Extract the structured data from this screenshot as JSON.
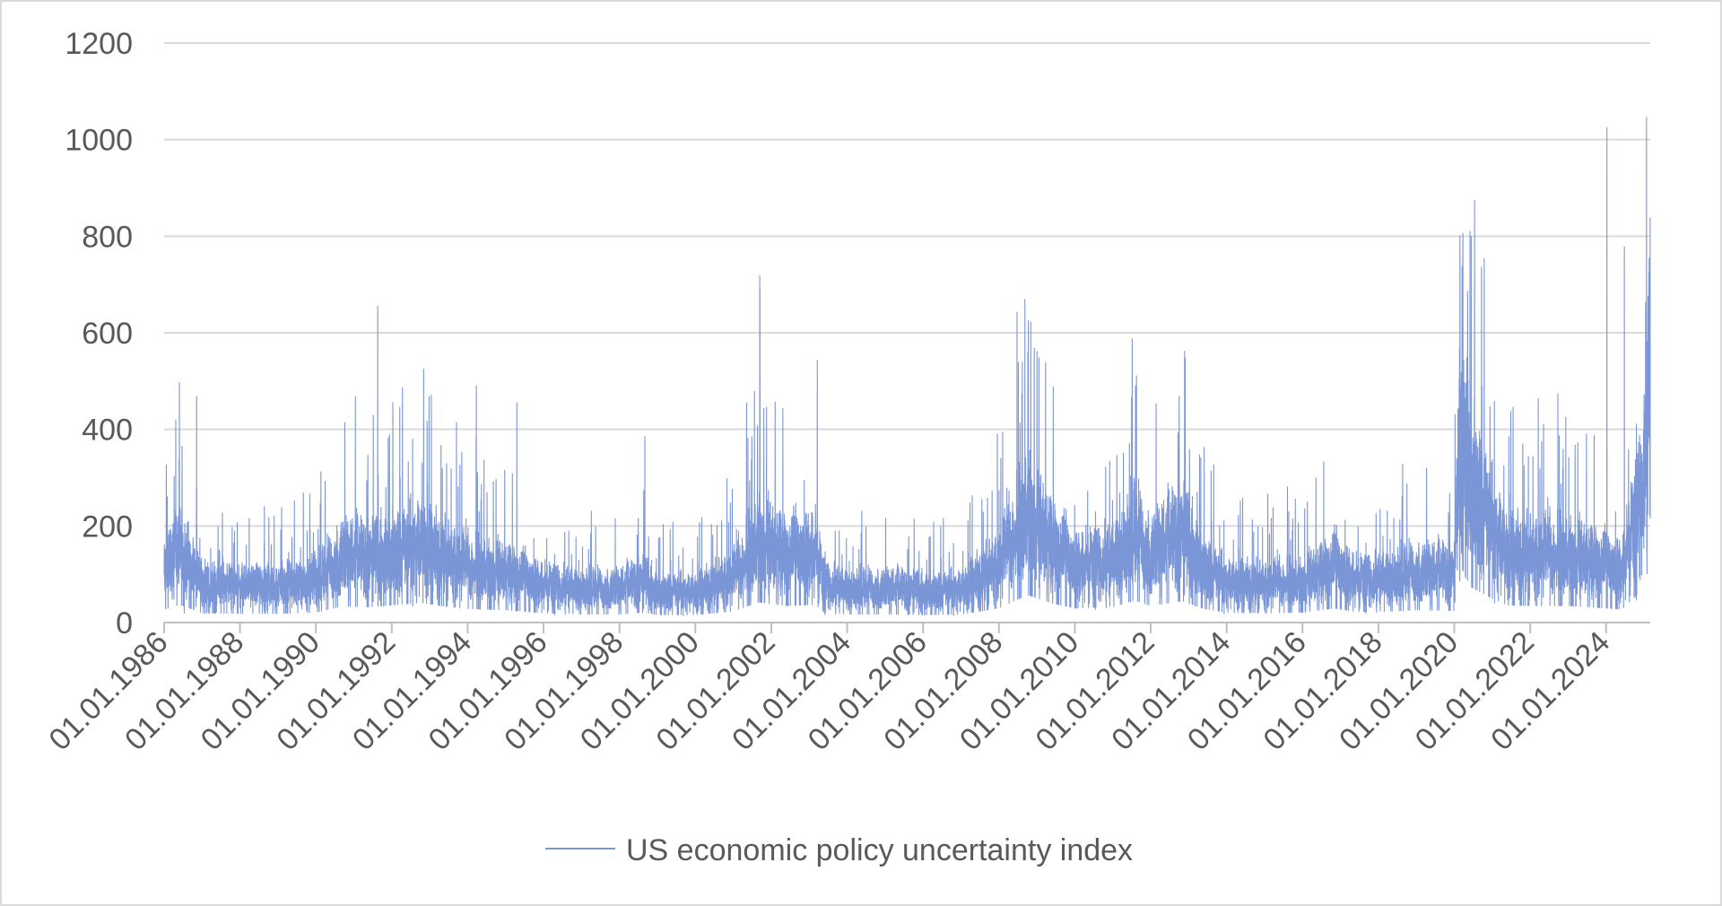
{
  "chart_data": {
    "type": "line",
    "title": "",
    "xlabel": "",
    "ylabel": "",
    "ylim": [
      0,
      1200
    ],
    "yticks": [
      0,
      200,
      400,
      600,
      800,
      1000,
      1200
    ],
    "xlim": [
      "1986-01-01",
      "2025-03-01"
    ],
    "xtick_labels": [
      "01.01.1986",
      "01.01.1988",
      "01.01.1990",
      "01.01.1992",
      "01.01.1994",
      "01.01.1996",
      "01.01.1998",
      "01.01.2000",
      "01.01.2002",
      "01.01.2004",
      "01.01.2006",
      "01.01.2008",
      "01.01.2010",
      "01.01.2012",
      "01.01.2014",
      "01.01.2016",
      "01.01.2018",
      "01.01.2020",
      "01.01.2022",
      "01.01.2024"
    ],
    "grid": "horizontal",
    "legend_position": "bottom",
    "colors": {
      "series": "#7b96d6",
      "grid": "#d9d9d9",
      "axis": "#bfbfbf",
      "text": "#595959"
    },
    "series": [
      {
        "name": "US economic policy uncertainty index",
        "frequency": "daily",
        "baseline_levels": [
          [
            "1986-01-01",
            110
          ],
          [
            "1986-06-01",
            150
          ],
          [
            "1987-01-01",
            80
          ],
          [
            "1988-01-01",
            75
          ],
          [
            "1989-01-01",
            75
          ],
          [
            "1990-01-01",
            85
          ],
          [
            "1990-09-01",
            135
          ],
          [
            "1991-06-01",
            130
          ],
          [
            "1992-01-01",
            145
          ],
          [
            "1992-10-01",
            165
          ],
          [
            "1993-06-01",
            135
          ],
          [
            "1994-01-01",
            115
          ],
          [
            "1995-01-01",
            105
          ],
          [
            "1996-01-01",
            80
          ],
          [
            "1997-01-01",
            70
          ],
          [
            "1998-01-01",
            70
          ],
          [
            "1998-09-01",
            85
          ],
          [
            "1999-01-01",
            65
          ],
          [
            "2000-01-01",
            65
          ],
          [
            "2001-01-01",
            95
          ],
          [
            "2001-09-01",
            170
          ],
          [
            "2002-06-01",
            140
          ],
          [
            "2003-03-01",
            150
          ],
          [
            "2003-06-01",
            80
          ],
          [
            "2004-01-01",
            70
          ],
          [
            "2005-01-01",
            70
          ],
          [
            "2006-01-01",
            65
          ],
          [
            "2007-01-01",
            70
          ],
          [
            "2008-01-01",
            120
          ],
          [
            "2008-10-01",
            230
          ],
          [
            "2009-06-01",
            160
          ],
          [
            "2010-01-01",
            120
          ],
          [
            "2011-01-01",
            130
          ],
          [
            "2011-08-01",
            185
          ],
          [
            "2012-01-01",
            140
          ],
          [
            "2012-11-01",
            180
          ],
          [
            "2013-06-01",
            115
          ],
          [
            "2014-01-01",
            85
          ],
          [
            "2015-01-01",
            80
          ],
          [
            "2016-01-01",
            85
          ],
          [
            "2016-11-01",
            120
          ],
          [
            "2017-06-01",
            90
          ],
          [
            "2018-01-01",
            90
          ],
          [
            "2019-01-01",
            105
          ],
          [
            "2020-01-01",
            100
          ],
          [
            "2020-03-15",
            450
          ],
          [
            "2020-06-01",
            300
          ],
          [
            "2021-01-01",
            200
          ],
          [
            "2021-06-01",
            145
          ],
          [
            "2022-01-01",
            140
          ],
          [
            "2023-01-01",
            140
          ],
          [
            "2024-01-01",
            120
          ],
          [
            "2024-06-01",
            110
          ],
          [
            "2024-12-01",
            260
          ],
          [
            "2025-02-15",
            480
          ]
        ],
        "peaks": [
          [
            "1986-11-10",
            468
          ],
          [
            "1991-01-16",
            468
          ],
          [
            "1991-08-19",
            655
          ],
          [
            "1992-11-03",
            525
          ],
          [
            "1994-03-25",
            490
          ],
          [
            "1995-04-19",
            455
          ],
          [
            "1998-09-02",
            385
          ],
          [
            "2001-09-12",
            718
          ],
          [
            "2001-09-14",
            692
          ],
          [
            "2003-03-20",
            543
          ],
          [
            "2008-10-10",
            625
          ],
          [
            "2008-11-03",
            622
          ],
          [
            "2009-01-20",
            548
          ],
          [
            "2011-08-08",
            490
          ],
          [
            "2012-11-28",
            548
          ],
          [
            "2020-03-16",
            738
          ],
          [
            "2020-03-24",
            806
          ],
          [
            "2024-01-09",
            1025
          ],
          [
            "2024-06-25",
            778
          ],
          [
            "2025-02-28",
            838
          ]
        ]
      }
    ]
  }
}
